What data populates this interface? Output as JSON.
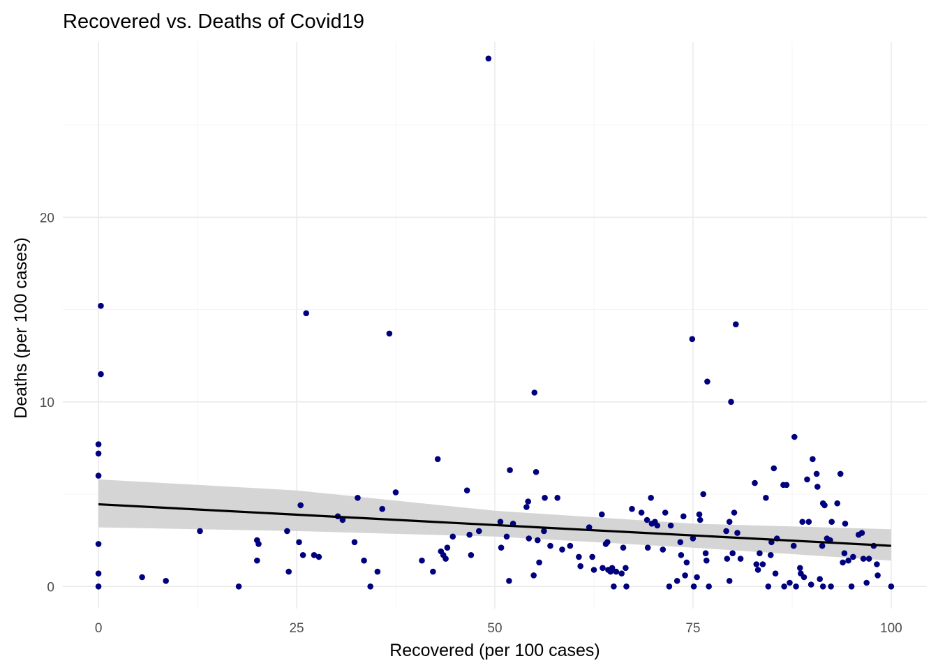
{
  "chart_data": {
    "type": "scatter",
    "title": "Recovered vs. Deaths of Covid19",
    "xlabel": "Recovered (per 100 cases)",
    "ylabel": "Deaths (per 100 cases)",
    "xlim": [
      -4.5,
      104.5
    ],
    "ylim": [
      -1.2,
      29.5
    ],
    "x_ticks": [
      0,
      25,
      50,
      75,
      100
    ],
    "y_ticks": [
      0,
      10,
      20
    ],
    "grid": true,
    "legend": "none",
    "colors": {
      "points": "#00007f",
      "trend_line": "#000000",
      "confidence_band": "#d3d3d3",
      "grid": "#ebebeb"
    },
    "trend": {
      "method": "linear",
      "intercept": 4.45,
      "slope": -0.0225,
      "x_range": [
        0,
        100
      ],
      "ci_lower": [
        [
          0,
          3.2
        ],
        [
          25,
          3.0
        ],
        [
          50,
          2.7
        ],
        [
          75,
          2.1
        ],
        [
          100,
          1.4
        ]
      ],
      "ci_upper": [
        [
          0,
          5.8
        ],
        [
          25,
          5.2
        ],
        [
          50,
          4.1
        ],
        [
          75,
          3.4
        ],
        [
          100,
          3.1
        ]
      ]
    },
    "points": [
      [
        0.0,
        7.7
      ],
      [
        0.0,
        7.2
      ],
      [
        0.0,
        6.0
      ],
      [
        0.0,
        2.3
      ],
      [
        0.0,
        0.7
      ],
      [
        0.0,
        0.0
      ],
      [
        0.3,
        15.2
      ],
      [
        0.3,
        11.5
      ],
      [
        5.5,
        0.5
      ],
      [
        8.5,
        0.3
      ],
      [
        12.8,
        3.0
      ],
      [
        17.7,
        0.0
      ],
      [
        20.0,
        2.5
      ],
      [
        20.2,
        2.3
      ],
      [
        20.0,
        1.4
      ],
      [
        23.8,
        3.0
      ],
      [
        24.0,
        0.8
      ],
      [
        25.3,
        2.4
      ],
      [
        25.5,
        4.4
      ],
      [
        25.8,
        1.7
      ],
      [
        26.2,
        14.8
      ],
      [
        27.2,
        1.7
      ],
      [
        27.8,
        1.6
      ],
      [
        30.2,
        3.8
      ],
      [
        30.8,
        3.6
      ],
      [
        32.3,
        2.4
      ],
      [
        32.7,
        4.8
      ],
      [
        33.5,
        1.4
      ],
      [
        34.3,
        0.0
      ],
      [
        35.2,
        0.8
      ],
      [
        35.8,
        4.2
      ],
      [
        36.7,
        13.7
      ],
      [
        37.5,
        5.1
      ],
      [
        40.8,
        1.4
      ],
      [
        42.2,
        0.8
      ],
      [
        42.8,
        6.9
      ],
      [
        43.2,
        1.9
      ],
      [
        43.5,
        1.7
      ],
      [
        43.8,
        1.5
      ],
      [
        44.0,
        2.1
      ],
      [
        44.7,
        2.7
      ],
      [
        46.5,
        5.2
      ],
      [
        46.8,
        2.8
      ],
      [
        47.0,
        1.7
      ],
      [
        48.0,
        3.0
      ],
      [
        49.2,
        28.6
      ],
      [
        50.7,
        3.5
      ],
      [
        50.8,
        2.1
      ],
      [
        51.5,
        2.7
      ],
      [
        51.8,
        0.3
      ],
      [
        51.9,
        6.3
      ],
      [
        52.3,
        3.4
      ],
      [
        54.0,
        4.3
      ],
      [
        54.2,
        4.6
      ],
      [
        54.3,
        2.6
      ],
      [
        54.9,
        0.6
      ],
      [
        55.0,
        10.5
      ],
      [
        55.2,
        6.2
      ],
      [
        55.4,
        2.5
      ],
      [
        55.6,
        1.3
      ],
      [
        56.2,
        3.0
      ],
      [
        56.3,
        4.8
      ],
      [
        57.0,
        2.2
      ],
      [
        57.9,
        4.8
      ],
      [
        58.5,
        2.0
      ],
      [
        59.5,
        2.2
      ],
      [
        60.6,
        1.6
      ],
      [
        60.8,
        1.1
      ],
      [
        61.9,
        3.2
      ],
      [
        62.3,
        1.6
      ],
      [
        62.5,
        0.9
      ],
      [
        63.5,
        3.9
      ],
      [
        63.6,
        1.0
      ],
      [
        64.0,
        2.3
      ],
      [
        64.2,
        2.4
      ],
      [
        64.3,
        0.9
      ],
      [
        64.6,
        0.8
      ],
      [
        64.8,
        1.0
      ],
      [
        65.0,
        0.0
      ],
      [
        65.3,
        0.8
      ],
      [
        66.0,
        0.7
      ],
      [
        66.2,
        2.1
      ],
      [
        66.5,
        1.0
      ],
      [
        66.6,
        0.0
      ],
      [
        67.3,
        4.2
      ],
      [
        68.5,
        4.0
      ],
      [
        69.2,
        3.6
      ],
      [
        69.3,
        2.1
      ],
      [
        69.7,
        4.8
      ],
      [
        69.8,
        3.4
      ],
      [
        70.2,
        3.5
      ],
      [
        70.5,
        3.3
      ],
      [
        71.2,
        2.0
      ],
      [
        71.5,
        4.0
      ],
      [
        72.0,
        0.0
      ],
      [
        72.2,
        3.3
      ],
      [
        73.0,
        0.3
      ],
      [
        73.4,
        2.4
      ],
      [
        73.5,
        1.7
      ],
      [
        73.8,
        3.8
      ],
      [
        74.0,
        0.6
      ],
      [
        74.2,
        1.3
      ],
      [
        74.9,
        13.4
      ],
      [
        75.0,
        2.6
      ],
      [
        75.1,
        0.0
      ],
      [
        75.5,
        0.5
      ],
      [
        75.8,
        3.9
      ],
      [
        75.9,
        3.6
      ],
      [
        76.3,
        5.0
      ],
      [
        76.6,
        1.8
      ],
      [
        76.7,
        1.4
      ],
      [
        76.8,
        11.1
      ],
      [
        77.0,
        0.0
      ],
      [
        79.2,
        3.0
      ],
      [
        79.3,
        1.5
      ],
      [
        79.6,
        0.3
      ],
      [
        79.6,
        3.5
      ],
      [
        79.8,
        10.0
      ],
      [
        80.0,
        1.8
      ],
      [
        80.2,
        4.0
      ],
      [
        80.4,
        14.2
      ],
      [
        80.6,
        2.9
      ],
      [
        81.0,
        1.5
      ],
      [
        82.8,
        5.6
      ],
      [
        83.0,
        1.2
      ],
      [
        83.2,
        0.9
      ],
      [
        83.4,
        1.8
      ],
      [
        83.8,
        1.2
      ],
      [
        84.2,
        4.8
      ],
      [
        84.5,
        0.0
      ],
      [
        84.8,
        1.7
      ],
      [
        84.9,
        2.4
      ],
      [
        85.2,
        6.4
      ],
      [
        85.4,
        0.7
      ],
      [
        85.6,
        2.6
      ],
      [
        86.4,
        5.5
      ],
      [
        86.5,
        0.0
      ],
      [
        86.8,
        5.5
      ],
      [
        87.2,
        0.2
      ],
      [
        87.7,
        2.2
      ],
      [
        87.8,
        8.1
      ],
      [
        88.0,
        0.0
      ],
      [
        88.5,
        1.0
      ],
      [
        88.6,
        0.7
      ],
      [
        88.8,
        3.5
      ],
      [
        89.0,
        0.5
      ],
      [
        89.4,
        5.8
      ],
      [
        89.6,
        3.5
      ],
      [
        89.9,
        0.1
      ],
      [
        90.1,
        6.9
      ],
      [
        90.6,
        6.1
      ],
      [
        90.7,
        5.4
      ],
      [
        91.0,
        0.4
      ],
      [
        91.3,
        2.2
      ],
      [
        91.4,
        4.5
      ],
      [
        91.4,
        0.0
      ],
      [
        91.6,
        4.4
      ],
      [
        91.9,
        2.6
      ],
      [
        92.3,
        2.5
      ],
      [
        92.4,
        0.0
      ],
      [
        92.5,
        3.5
      ],
      [
        93.2,
        4.5
      ],
      [
        93.6,
        6.1
      ],
      [
        93.9,
        1.3
      ],
      [
        94.1,
        1.8
      ],
      [
        94.2,
        3.4
      ],
      [
        94.6,
        1.4
      ],
      [
        95.0,
        0.0
      ],
      [
        95.2,
        1.6
      ],
      [
        95.9,
        2.8
      ],
      [
        96.3,
        2.9
      ],
      [
        96.5,
        1.5
      ],
      [
        96.9,
        0.2
      ],
      [
        97.2,
        1.5
      ],
      [
        97.8,
        2.2
      ],
      [
        98.2,
        1.2
      ],
      [
        98.3,
        0.6
      ],
      [
        100.0,
        0.0
      ]
    ]
  }
}
